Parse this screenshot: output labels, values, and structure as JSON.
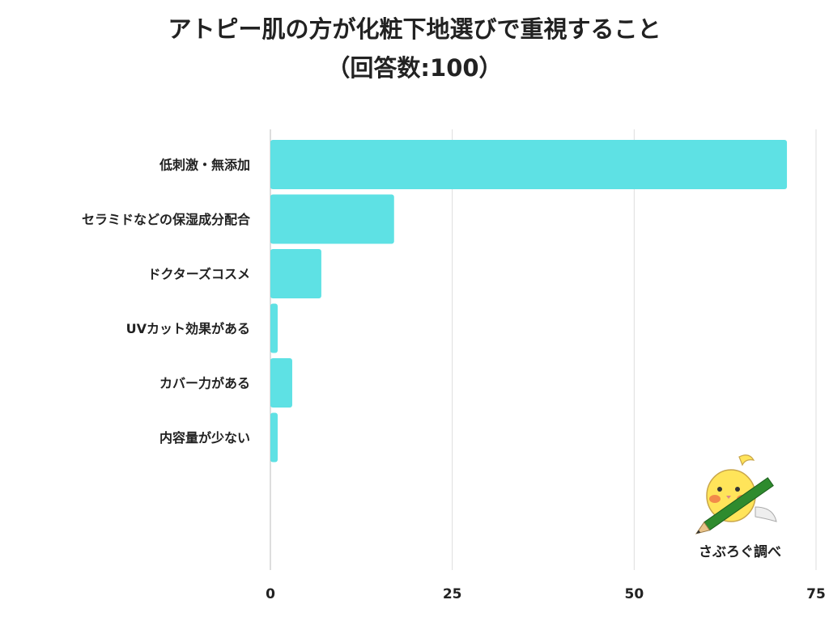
{
  "title": {
    "line1": "アトピー肌の方が化粧下地選びで重視すること",
    "line2": "（回答数:100）"
  },
  "chart_data": {
    "type": "bar",
    "orientation": "horizontal",
    "categories": [
      "低刺激・無添加",
      "セラミドなどの保湿成分配合",
      "ドクターズコスメ",
      "UVカット効果がある",
      "カバー力がある",
      "内容量が少ない"
    ],
    "values": [
      71,
      17,
      7,
      1,
      3,
      1
    ],
    "xlim": [
      0,
      75
    ],
    "xticks": [
      0,
      25,
      50,
      75
    ],
    "xtick_labels": [
      "0",
      "25",
      "50",
      "75"
    ],
    "grid": true,
    "bar_color": "#5EE1E4"
  },
  "watermark": {
    "text": "さぶろぐ調べ"
  }
}
